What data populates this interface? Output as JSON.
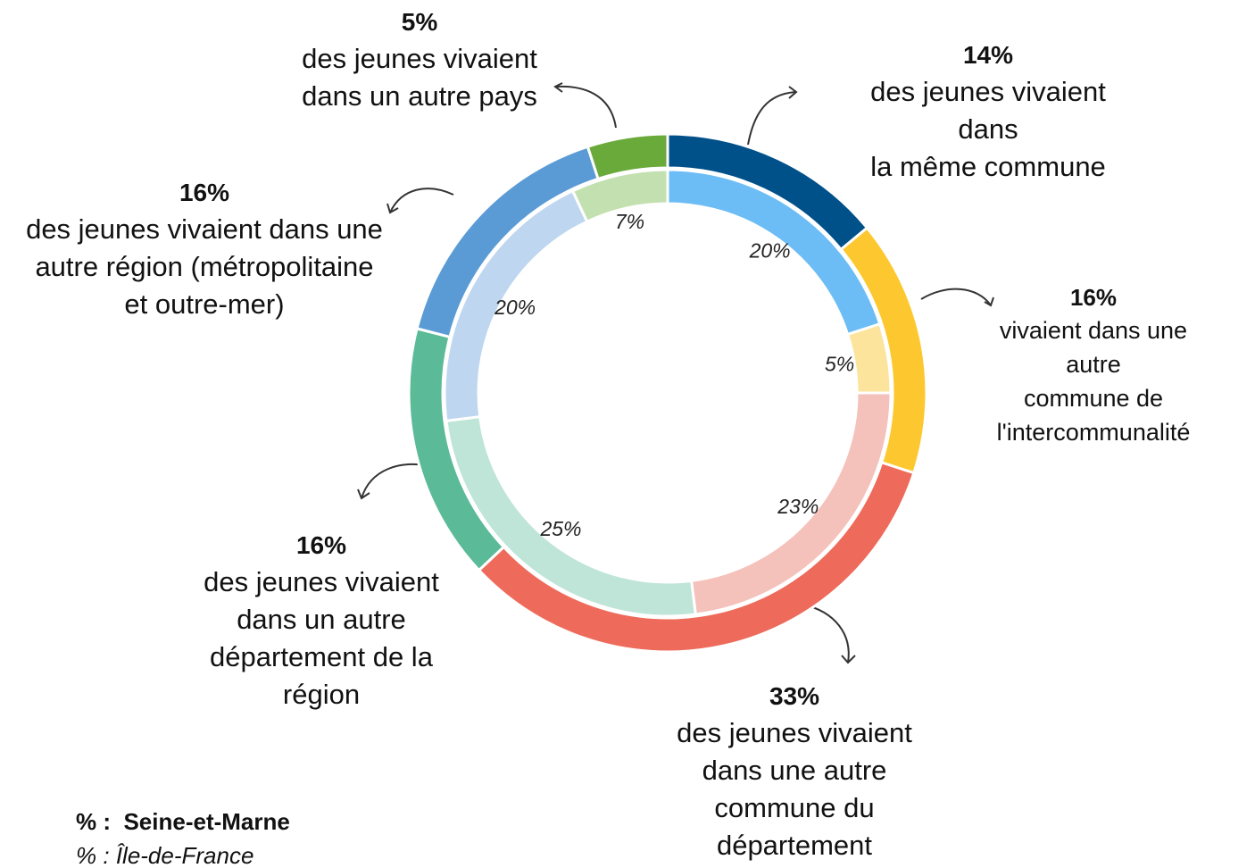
{
  "chart_data": {
    "type": "donut",
    "categories": [
      "des jeunes vivaient dans\nla même commune",
      "vivaient dans une autre\ncommune de\nl'intercommunalité",
      "des jeunes vivaient\ndans une autre\ncommune du\ndépartement",
      "des jeunes vivaient\ndans un autre\ndépartement de la\nrégion",
      "des jeunes vivaient dans une\nautre région (métropolitaine\net outre-mer)",
      "des jeunes vivaient\ndans un autre pays"
    ],
    "legend_prefix": "% :",
    "series": [
      {
        "name": "Seine-et-Marne",
        "values": [
          14,
          16,
          33,
          16,
          16,
          5
        ],
        "value_labels": [
          "14%",
          "16%",
          "33%",
          "16%",
          "16%",
          "5%"
        ],
        "colors": [
          "#00508a",
          "#fdc82f",
          "#ee6a5a",
          "#5bba98",
          "#5b9bd5",
          "#6aaa3a"
        ]
      },
      {
        "name": "Île-de-France",
        "values": [
          20,
          5,
          23,
          25,
          20,
          7
        ],
        "value_labels": [
          "20%",
          "5%",
          "23%",
          "25%",
          "20%",
          "7%"
        ],
        "colors": [
          "#6cbdf5",
          "#fde49c",
          "#f5c1bb",
          "#bfe5d8",
          "#bed6ef",
          "#c3e0b0"
        ]
      }
    ]
  }
}
